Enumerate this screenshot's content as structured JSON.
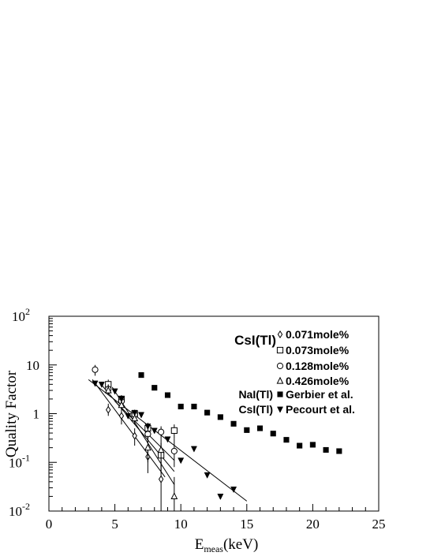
{
  "chart_data": {
    "type": "scatter",
    "title": "",
    "xlabel": "E",
    "xlabel_sub": "meas",
    "xlabel_unit": "(keV)",
    "ylabel": "Quality Factor",
    "xlim": [
      0,
      25
    ],
    "ylim": [
      0.01,
      100
    ],
    "yscale": "log",
    "grid": false,
    "legend_position": "top-right",
    "xticks": [
      {
        "v": 0,
        "label": "0"
      },
      {
        "v": 5,
        "label": "5"
      },
      {
        "v": 10,
        "label": "10"
      },
      {
        "v": 15,
        "label": "15"
      },
      {
        "v": 20,
        "label": "20"
      },
      {
        "v": 25,
        "label": "25"
      }
    ],
    "yticks": [
      {
        "v": 100,
        "base": "10",
        "exp": "2"
      },
      {
        "v": 10,
        "base": "10",
        "exp": ""
      },
      {
        "v": 1,
        "base": "1",
        "exp": ""
      },
      {
        "v": 0.1,
        "base": "10",
        "exp": "-1"
      },
      {
        "v": 0.01,
        "base": "10",
        "exp": "-2"
      }
    ],
    "legend_group_label": "CsI(Tl)",
    "series": [
      {
        "name": "0.071mole%",
        "marker": "diamond-open",
        "group_label": "",
        "x": [
          4.5,
          5.5,
          6.5,
          7.5,
          8.5
        ],
        "y": [
          1.2,
          0.9,
          0.35,
          0.13,
          0.045
        ],
        "yerr_low": [
          0.9,
          0.6,
          0.22,
          0.06,
          0.01
        ],
        "yerr_high": [
          1.6,
          1.3,
          0.5,
          0.22,
          0.1
        ]
      },
      {
        "name": "0.073mole%",
        "marker": "square-open",
        "group_label": "",
        "x": [
          4.5,
          5.5,
          6.5,
          7.5,
          8.5,
          9.5
        ],
        "y": [
          4.0,
          2.0,
          1.0,
          0.5,
          0.14,
          0.45
        ],
        "yerr_low": [
          3.2,
          1.6,
          0.8,
          0.35,
          0.06,
          0.3
        ],
        "yerr_high": [
          5.0,
          2.4,
          1.2,
          0.65,
          0.25,
          0.6
        ]
      },
      {
        "name": "0.128mole%",
        "marker": "circle-open",
        "group_label": "",
        "x": [
          3.5,
          4.5,
          5.5,
          6.5,
          7.5,
          8.5,
          9.5
        ],
        "y": [
          8.0,
          3.2,
          1.8,
          0.95,
          0.38,
          0.42,
          0.17
        ],
        "yerr_low": [
          6.0,
          2.5,
          1.4,
          0.7,
          0.25,
          0.3,
          0.08
        ],
        "yerr_high": [
          10.0,
          4.0,
          2.2,
          1.2,
          0.55,
          0.55,
          0.3
        ]
      },
      {
        "name": "0.426mole%",
        "marker": "triangle-up-open",
        "group_label": "",
        "x": [
          4.5,
          5.5,
          6.5,
          7.5,
          8.5,
          9.5
        ],
        "y": [
          3.0,
          1.5,
          0.8,
          0.2,
          0.18,
          0.02
        ],
        "yerr_low": [
          2.4,
          1.1,
          0.6,
          0.1,
          0.08,
          0.01
        ],
        "yerr_high": [
          3.8,
          1.9,
          1.0,
          0.35,
          0.3,
          0.05
        ]
      },
      {
        "name": "Gerbier et al.",
        "marker": "square-filled",
        "group_label": "NaI(Tl)",
        "x": [
          7,
          8,
          9,
          10,
          11,
          12,
          13,
          14,
          15,
          16,
          17,
          18,
          19,
          20,
          21,
          22
        ],
        "y": [
          6.2,
          3.4,
          2.4,
          1.4,
          1.4,
          1.05,
          0.85,
          0.62,
          0.46,
          0.5,
          0.39,
          0.29,
          0.22,
          0.23,
          0.18,
          0.17
        ]
      },
      {
        "name": "Pecourt et al.",
        "marker": "triangle-down-filled",
        "group_label": "CsI(Tl)",
        "x": [
          3.5,
          4,
          5,
          5.5,
          6,
          6.5,
          7,
          7.5,
          8,
          9,
          10,
          11,
          12,
          13,
          14
        ],
        "y": [
          4.2,
          4.0,
          2.9,
          2.0,
          0.9,
          1.05,
          0.95,
          0.55,
          0.45,
          0.3,
          0.11,
          0.19,
          0.055,
          0.02,
          0.028
        ]
      }
    ],
    "fit_lines": [
      {
        "x": [
          3,
          15
        ],
        "y": [
          5.0,
          0.016
        ]
      },
      {
        "x": [
          3.3,
          8.8
        ],
        "y": [
          5.0,
          0.05
        ]
      },
      {
        "x": [
          3.8,
          9.5
        ],
        "y": [
          4.5,
          0.065
        ]
      },
      {
        "x": [
          4.8,
          9.5
        ],
        "y": [
          3.5,
          0.035
        ]
      },
      {
        "x": [
          5.0,
          9.5
        ],
        "y": [
          1.8,
          0.11
        ]
      }
    ]
  }
}
